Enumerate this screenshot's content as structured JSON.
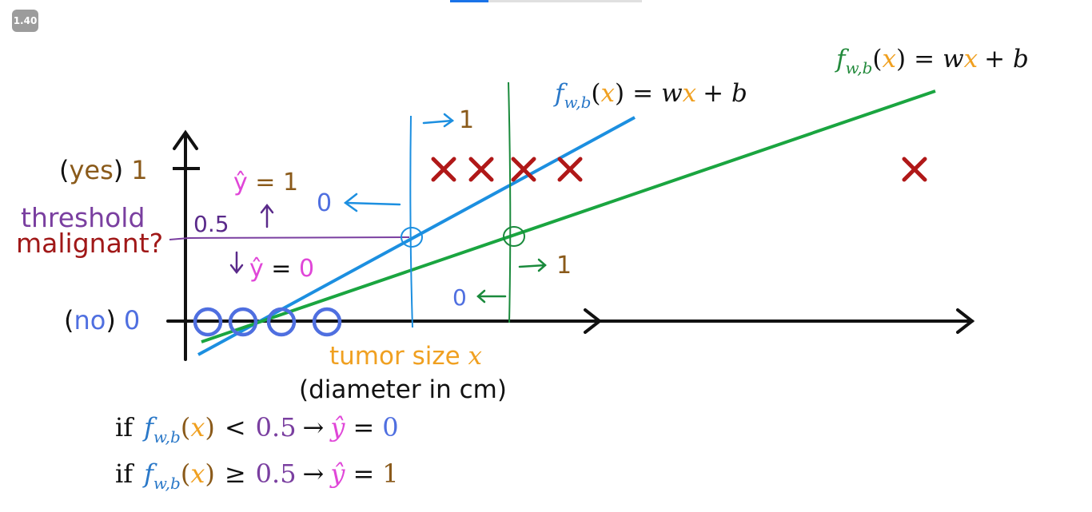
{
  "player": {
    "speed_badge": "1.40"
  },
  "labels": {
    "yes_word": "yes",
    "yes_value": "1",
    "no_word": "no",
    "no_value": "0",
    "threshold_word": "threshold",
    "malignant_word": "malignant?",
    "threshold_value": "0.5",
    "yhat_upper": "ŷ = 1",
    "yhat_lower": "ŷ = 0",
    "xaxis_main": "tumor size",
    "xaxis_var": "x",
    "xaxis_sub": "(diameter in cm)",
    "blue_left_zero": "0",
    "blue_right_one": "1",
    "green_left_zero": "0",
    "green_right_one": "1"
  },
  "equations": {
    "f": "f",
    "sub": "w,b",
    "x": "x",
    "blue_rhs_w": "w",
    "blue_rhs_b": "+ b",
    "eq": "=",
    "rule1_if": "if",
    "rule1_op": "<",
    "rule1_thr": "0.5",
    "rule1_arrow": "→",
    "rule1_yhat": "ŷ",
    "rule1_val": "0",
    "rule2_if": "if",
    "rule2_op": "≥",
    "rule2_thr": "0.5",
    "rule2_arrow": "→",
    "rule2_yhat": "ŷ",
    "rule2_val": "1"
  },
  "colors": {
    "black": "#111111",
    "blue_line": "#1c8fe0",
    "green_line": "#1aa540",
    "malignant_x": "#b01818",
    "benign_o": "#4f6fe0",
    "threshold": "#7a3fa0",
    "orange": "#f0a020",
    "magenta": "#e046d8",
    "brown": "#8a5a1a",
    "eq_blue": "#2a78c8",
    "green_text": "#238a3c"
  },
  "icons": {
    "malignant": "x-mark-icon",
    "benign": "circle-icon",
    "axis_arrow": "arrow-head-icon"
  }
}
